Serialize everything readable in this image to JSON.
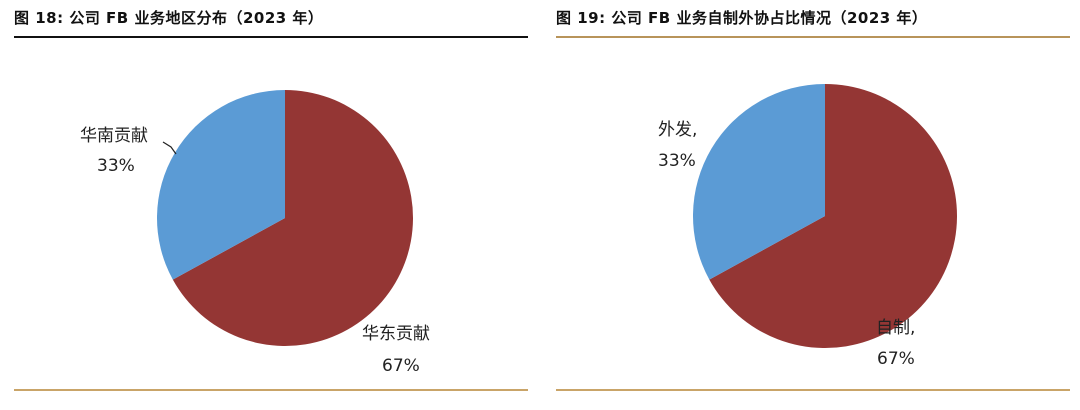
{
  "figures": [
    {
      "title": "图 18:  公司 FB 业务地区分布（2023 年）"
    },
    {
      "title": "图 19:  公司 FB 业务自制外协占比情况（2023 年）"
    }
  ],
  "colors": {
    "red_slice": "#943634",
    "blue_slice": "#5b9bd5",
    "gold_rule": "#c9a468"
  },
  "chart_data": [
    {
      "type": "pie",
      "title": "图 18:  公司 FB 业务地区分布（2023 年）",
      "slices": [
        {
          "name": "华东贡献",
          "value": 67,
          "label": "67%",
          "color": "#943634"
        },
        {
          "name": "华南贡献",
          "value": 33,
          "label": "33%",
          "color": "#5b9bd5"
        }
      ]
    },
    {
      "type": "pie",
      "title": "图 19:  公司 FB 业务自制外协占比情况（2023 年）",
      "slices": [
        {
          "name": "自制,",
          "value": 67,
          "label": "67%",
          "color": "#943634"
        },
        {
          "name": "外发,",
          "value": 33,
          "label": "33%",
          "color": "#5b9bd5"
        }
      ]
    }
  ]
}
